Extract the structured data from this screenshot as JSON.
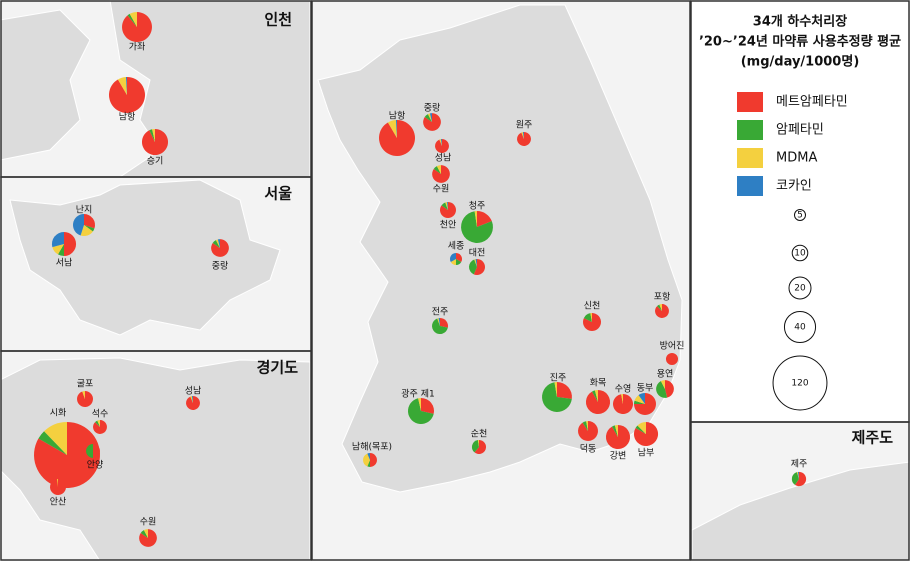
{
  "chart_data": {
    "type": "pie-map",
    "title": [
      "34개 하수처리장",
      "’20~’24년 마약류 사용추정량 평균",
      "(mg/day/1000명)"
    ],
    "series": [
      {
        "name": "메트암페타민",
        "color": "#f03a2e"
      },
      {
        "name": "암페타민",
        "color": "#39a935"
      },
      {
        "name": "MDMA",
        "color": "#f4d03f"
      },
      {
        "name": "코카인",
        "color": "#2e7fc4"
      }
    ],
    "size_legend": [
      5,
      10,
      20,
      40,
      120
    ],
    "maps": [
      {
        "title": "인천",
        "sites": [
          {
            "name": "가좌",
            "values": [
              33,
              1,
              3,
              0
            ]
          },
          {
            "name": "남항",
            "values": [
              49,
              0,
              4,
              0.5
            ]
          },
          {
            "name": "승기",
            "values": [
              26,
              1,
              1,
              0
            ]
          }
        ]
      },
      {
        "title": "서울",
        "sites": [
          {
            "name": "난지",
            "values": [
              6,
              1,
              4,
              9
            ]
          },
          {
            "name": "서남",
            "values": [
              12,
              2,
              3,
              7
            ]
          },
          {
            "name": "중랑",
            "values": [
              11,
              1,
              0.5,
              0.5
            ]
          }
        ]
      },
      {
        "title": "경기도",
        "sites": [
          {
            "name": "굴포",
            "values": [
              10,
              0,
              0.6,
              0
            ]
          },
          {
            "name": "석수",
            "values": [
              7,
              0.5,
              0.5,
              0
            ]
          },
          {
            "name": "성남",
            "values": [
              7.5,
              0,
              0.3,
              0.2
            ]
          },
          {
            "name": "시화",
            "values": [
              150,
              8,
              22,
              0
            ]
          },
          {
            "name": "안양",
            "values": [
              4,
              4,
              0,
              0
            ]
          },
          {
            "name": "안산",
            "values": [
              10.4,
              0,
              0.2,
              0
            ]
          },
          {
            "name": "수원",
            "values": [
              11,
              1,
              1,
              0
            ]
          }
        ]
      },
      {
        "title": "제주도",
        "sites": [
          {
            "name": "제주",
            "values": [
              5,
              3,
              0.2,
              0.2
            ]
          }
        ]
      },
      {
        "sites": [
          {
            "name": "남항",
            "values": [
              49,
              0,
              4,
              0.5
            ]
          },
          {
            "name": "중랑",
            "values": [
              11,
              1,
              0.5,
              0.5
            ]
          },
          {
            "name": "성남",
            "values": [
              7.5,
              0,
              0.3,
              0.2
            ]
          },
          {
            "name": "수원",
            "values": [
              11,
              1,
              1,
              0
            ]
          },
          {
            "name": "천안",
            "values": [
              9,
              1,
              0.4,
              0.2
            ]
          },
          {
            "name": "원주",
            "values": [
              7.5,
              0,
              0.3,
              0.2
            ]
          },
          {
            "name": "청주",
            "values": [
              8,
              33,
              1,
              0
            ]
          },
          {
            "name": "세종",
            "values": [
              2,
              1,
              1,
              2
            ]
          },
          {
            "name": "대전",
            "values": [
              6,
              4,
              0.3,
              0.3
            ]
          },
          {
            "name": "전주",
            "values": [
              3,
              7,
              0.3,
              0.3
            ]
          },
          {
            "name": "신천",
            "values": [
              11,
              2,
              0.4,
              0
            ]
          },
          {
            "name": "포항",
            "values": [
              7,
              0.5,
              0.5,
              0
            ]
          },
          {
            "name": "방어진",
            "values": [
              6,
              0,
              0,
              0
            ]
          },
          {
            "name": "광주 제1",
            "values": [
              8,
              19,
              1,
              0
            ]
          },
          {
            "name": "진주",
            "values": [
              10,
              26,
              1,
              0
            ]
          },
          {
            "name": "화목",
            "values": [
              22,
              1,
              1,
              0
            ]
          },
          {
            "name": "수영",
            "values": [
              16,
              0,
              0.5,
              0
            ]
          },
          {
            "name": "동부",
            "values": [
              15,
              1,
              2,
              2
            ]
          },
          {
            "name": "용연",
            "values": [
              6,
              6,
              1,
              0
            ]
          },
          {
            "name": "덕동",
            "values": [
              15,
              1,
              0.5,
              0
            ]
          },
          {
            "name": "강변",
            "values": [
              22,
              1,
              1,
              0
            ]
          },
          {
            "name": "남부",
            "values": [
              20,
              1,
              3,
              0
            ]
          },
          {
            "name": "남해(목포)",
            "values": [
              4,
              0.5,
              3,
              0.5
            ]
          },
          {
            "name": "순천",
            "values": [
              5,
              3,
              0.2,
              0
            ]
          }
        ]
      }
    ]
  }
}
